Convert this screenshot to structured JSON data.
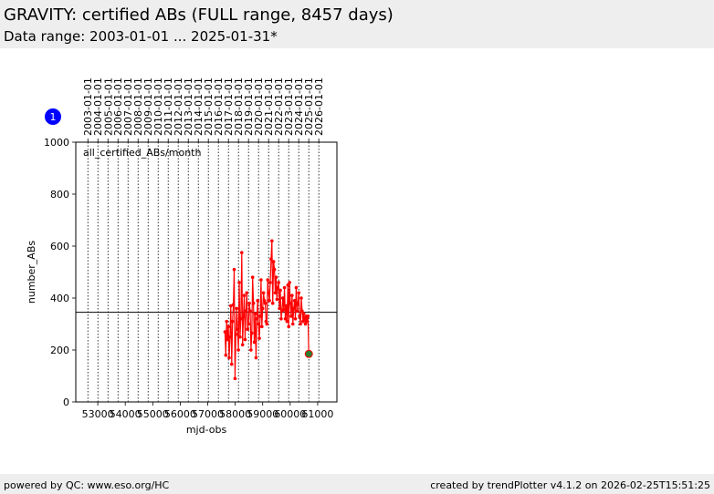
{
  "header": {
    "title": "GRAVITY: certified ABs (FULL range, 8457 days)",
    "subtitle": "Data range: 2003-01-01 ... 2025-01-31*"
  },
  "footer": {
    "left": "powered by QC: www.eso.org/HC",
    "right": "created by trendPlotter v4.1.2 on 2026-02-25T15:51:25"
  },
  "badge": {
    "label": "1",
    "color": "#0000ff"
  },
  "chart_data": {
    "type": "line",
    "series_label": "all_certified_ABs/month",
    "xlabel": "mjd-obs",
    "ylabel": "number_ABs",
    "xlim": [
      52200,
      61700
    ],
    "ylim": [
      0,
      1000
    ],
    "x_ticks": [
      53000,
      54000,
      55000,
      56000,
      57000,
      58000,
      59000,
      60000,
      61000
    ],
    "y_ticks": [
      0,
      200,
      400,
      600,
      800,
      1000
    ],
    "date_ticks": [
      {
        "label": "2003-01-01",
        "mjd": 52640
      },
      {
        "label": "2004-01-01",
        "mjd": 53005
      },
      {
        "label": "2005-01-01",
        "mjd": 53371
      },
      {
        "label": "2006-01-01",
        "mjd": 53736
      },
      {
        "label": "2007-01-01",
        "mjd": 54101
      },
      {
        "label": "2008-01-01",
        "mjd": 54466
      },
      {
        "label": "2009-01-01",
        "mjd": 54832
      },
      {
        "label": "2010-01-01",
        "mjd": 55197
      },
      {
        "label": "2011-01-01",
        "mjd": 55562
      },
      {
        "label": "2012-01-01",
        "mjd": 55927
      },
      {
        "label": "2013-01-01",
        "mjd": 56293
      },
      {
        "label": "2014-01-01",
        "mjd": 56658
      },
      {
        "label": "2015-01-01",
        "mjd": 57023
      },
      {
        "label": "2016-01-01",
        "mjd": 57388
      },
      {
        "label": "2017-01-01",
        "mjd": 57754
      },
      {
        "label": "2018-01-01",
        "mjd": 58119
      },
      {
        "label": "2019-01-01",
        "mjd": 58484
      },
      {
        "label": "2020-01-01",
        "mjd": 58849
      },
      {
        "label": "2021-01-01",
        "mjd": 59215
      },
      {
        "label": "2022-01-01",
        "mjd": 59580
      },
      {
        "label": "2023-01-01",
        "mjd": 59945
      },
      {
        "label": "2024-01-01",
        "mjd": 60310
      },
      {
        "label": "2025-01-01",
        "mjd": 60676
      },
      {
        "label": "2026-01-01",
        "mjd": 61041
      }
    ],
    "reference_line": 345,
    "series_color": "#ff0000",
    "last_point_color": "#2e7d32",
    "grid": "vertical dotted at date ticks",
    "series": [
      {
        "x": [
          57628,
          57658,
          57689,
          57719,
          57750,
          57780,
          57811,
          57841,
          57872,
          57902,
          57933,
          57963,
          57994,
          58024,
          58055,
          58085,
          58116,
          58146,
          58177,
          58207,
          58238,
          58268,
          58299,
          58329,
          58360,
          58390,
          58421,
          58451,
          58482,
          58512,
          58543,
          58573,
          58604,
          58634,
          58665,
          58695,
          58726,
          58756,
          58787,
          58817,
          58848,
          58878,
          58909,
          58939,
          58970,
          59000,
          59031,
          59061,
          59092,
          59122,
          59153,
          59183,
          59214,
          59244,
          59275,
          59305,
          59336,
          59366,
          59397,
          59427,
          59458,
          59488,
          59519,
          59549,
          59580,
          59610,
          59641,
          59671,
          59702,
          59732,
          59763,
          59793,
          59824,
          59854,
          59885,
          59915,
          59946,
          59976,
          60007,
          60037,
          60068,
          60098,
          60129,
          60159,
          60190,
          60220,
          60251,
          60281,
          60312,
          60342,
          60373,
          60403,
          60434,
          60464,
          60495,
          60525,
          60556,
          60586,
          60617,
          60647,
          60678
        ],
        "y": [
          270,
          180,
          310,
          240,
          290,
          170,
          250,
          370,
          145,
          310,
          375,
          510,
          90,
          260,
          360,
          280,
          200,
          460,
          250,
          320,
          575,
          220,
          330,
          410,
          240,
          350,
          420,
          280,
          300,
          380,
          350,
          200,
          265,
          480,
          380,
          230,
          340,
          170,
          320,
          390,
          300,
          245,
          330,
          470,
          290,
          360,
          420,
          390,
          380,
          310,
          300,
          470,
          420,
          390,
          460,
          550,
          620,
          380,
          540,
          510,
          420,
          480,
          395,
          440,
          460,
          360,
          430,
          320,
          350,
          400,
          355,
          440,
          320,
          370,
          310,
          450,
          290,
          460,
          380,
          330,
          410,
          300,
          360,
          390,
          320,
          440,
          350,
          380,
          420,
          330,
          300,
          400,
          350,
          310,
          340,
          320,
          300,
          330,
          310,
          330,
          185
        ]
      }
    ]
  }
}
